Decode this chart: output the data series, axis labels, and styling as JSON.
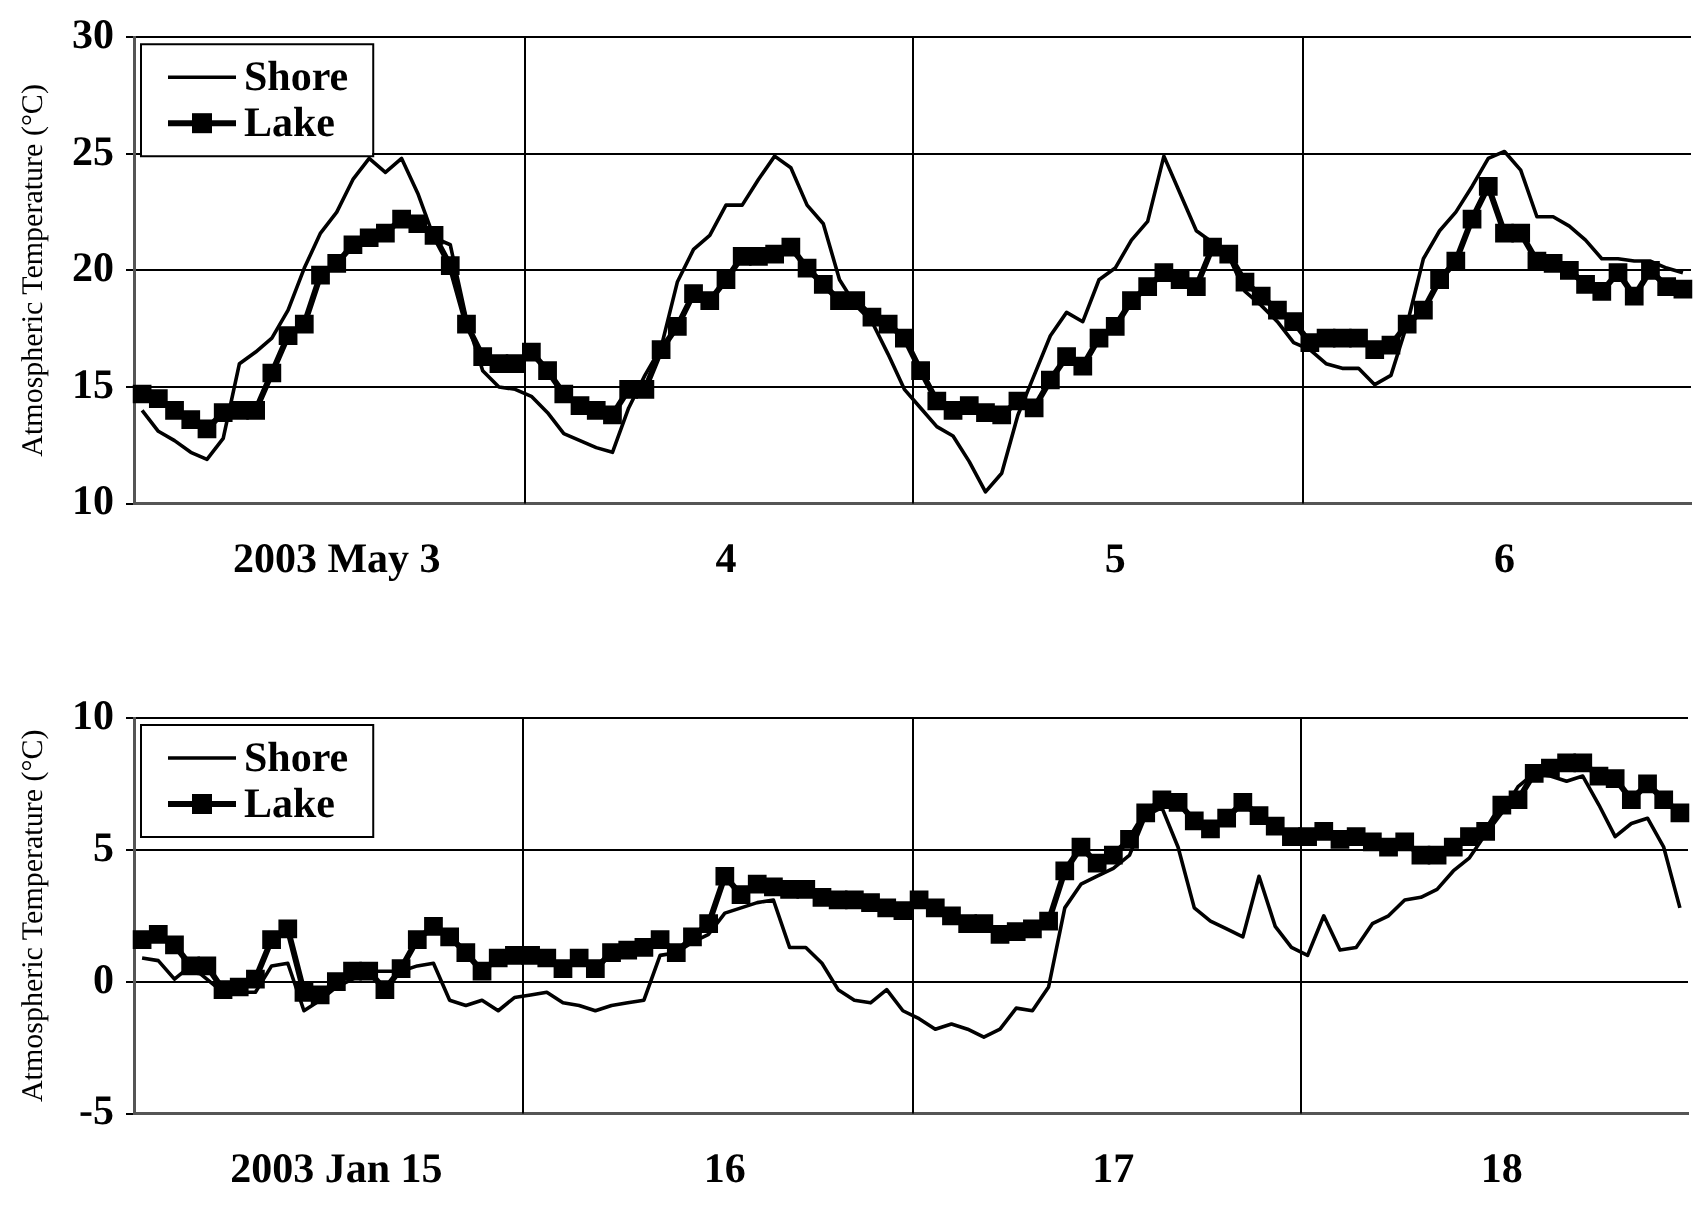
{
  "chart_data": [
    {
      "type": "line",
      "ylabel": "Atmospheric Temperature (°C)",
      "ylim": [
        10,
        30
      ],
      "yticks": [
        10,
        15,
        20,
        25,
        30
      ],
      "categories": [
        null,
        null,
        null,
        null,
        null,
        null,
        null,
        null,
        null,
        null,
        null,
        null,
        "2003 May 3",
        null,
        null,
        null,
        null,
        null,
        null,
        null,
        null,
        null,
        null,
        null,
        null,
        null,
        null,
        null,
        null,
        null,
        null,
        null,
        null,
        null,
        null,
        null,
        "4",
        null,
        null,
        null,
        null,
        null,
        null,
        null,
        null,
        null,
        null,
        null,
        null,
        null,
        null,
        null,
        null,
        null,
        null,
        null,
        null,
        null,
        null,
        null,
        "5",
        null,
        null,
        null,
        null,
        null,
        null,
        null,
        null,
        null,
        null,
        null,
        null,
        null,
        null,
        null,
        null,
        null,
        null,
        null,
        null,
        null,
        null,
        null,
        "6",
        null,
        null,
        null,
        null,
        null,
        null,
        null,
        null,
        null,
        null,
        null
      ],
      "grid": true,
      "legend": "top left",
      "series": [
        {
          "name": "Shore",
          "color": "#000000",
          "marker": "none",
          "values": [
            14.0,
            13.1,
            12.7,
            12.2,
            11.9,
            12.8,
            16.0,
            16.5,
            17.1,
            18.3,
            20.1,
            21.6,
            22.5,
            23.9,
            24.8,
            24.2,
            24.8,
            23.3,
            21.4,
            21.1,
            17.9,
            15.7,
            15.0,
            14.9,
            14.6,
            13.9,
            13.0,
            12.7,
            12.4,
            12.2,
            14.1,
            15.5,
            16.7,
            19.5,
            20.9,
            21.5,
            22.8,
            22.8,
            23.9,
            24.9,
            24.4,
            22.8,
            22.0,
            19.6,
            18.5,
            17.8,
            16.4,
            14.9,
            14.1,
            13.3,
            12.9,
            11.8,
            10.5,
            11.3,
            13.8,
            15.5,
            17.2,
            18.2,
            17.8,
            19.6,
            20.1,
            21.3,
            22.1,
            24.9,
            23.3,
            21.7,
            21.2,
            20.6,
            19.1,
            18.5,
            17.8,
            16.9,
            16.6,
            16.0,
            15.8,
            15.8,
            15.1,
            15.5,
            17.7,
            20.5,
            21.7,
            22.5,
            23.6,
            24.8,
            25.1,
            24.3,
            22.3,
            22.3,
            21.9,
            21.3,
            20.5,
            20.5,
            20.4,
            20.4,
            20.1,
            19.9
          ]
        },
        {
          "name": "Lake",
          "color": "#000000",
          "marker": "square",
          "values": [
            14.7,
            14.5,
            14.0,
            13.6,
            13.2,
            13.9,
            14.0,
            14.0,
            15.6,
            17.2,
            17.7,
            19.8,
            20.3,
            21.1,
            21.4,
            21.6,
            22.2,
            22.0,
            21.5,
            20.2,
            17.7,
            16.3,
            16.0,
            16.0,
            16.5,
            15.7,
            14.7,
            14.2,
            14.0,
            13.8,
            14.9,
            14.9,
            16.6,
            17.6,
            19.0,
            18.7,
            19.6,
            20.6,
            20.6,
            20.7,
            21.0,
            20.1,
            19.4,
            18.7,
            18.7,
            18.0,
            17.7,
            17.1,
            15.7,
            14.4,
            14.0,
            14.2,
            13.9,
            13.8,
            14.4,
            14.1,
            15.3,
            16.3,
            15.9,
            17.1,
            17.6,
            18.7,
            19.3,
            19.9,
            19.6,
            19.3,
            21.0,
            20.7,
            19.5,
            18.9,
            18.3,
            17.8,
            16.9,
            17.1,
            17.1,
            17.1,
            16.6,
            16.8,
            17.7,
            18.3,
            19.6,
            20.4,
            22.2,
            23.6,
            21.6,
            21.6,
            20.4,
            20.3,
            20.0,
            19.4,
            19.1,
            19.9,
            18.9,
            20.0,
            19.3,
            19.2
          ]
        }
      ]
    },
    {
      "type": "line",
      "ylabel": "Atmospheric Temperature (°C)",
      "ylim": [
        -5,
        10
      ],
      "yticks": [
        -5,
        0,
        5,
        10
      ],
      "categories": [
        null,
        null,
        null,
        null,
        null,
        null,
        null,
        null,
        null,
        null,
        null,
        null,
        "2003 Jan 15",
        null,
        null,
        null,
        null,
        null,
        null,
        null,
        null,
        null,
        null,
        null,
        null,
        null,
        null,
        null,
        null,
        null,
        null,
        null,
        null,
        null,
        null,
        null,
        "16",
        null,
        null,
        null,
        null,
        null,
        null,
        null,
        null,
        null,
        null,
        null,
        null,
        null,
        null,
        null,
        null,
        null,
        null,
        null,
        null,
        null,
        null,
        null,
        "17",
        null,
        null,
        null,
        null,
        null,
        null,
        null,
        null,
        null,
        null,
        null,
        null,
        null,
        null,
        null,
        null,
        null,
        null,
        null,
        null,
        null,
        null,
        null,
        "18",
        null,
        null,
        null,
        null,
        null,
        null,
        null,
        null,
        null,
        null,
        null
      ],
      "grid": true,
      "legend": "top left",
      "series": [
        {
          "name": "Shore",
          "color": "#000000",
          "marker": "none",
          "values": [
            0.9,
            0.8,
            0.1,
            0.6,
            0.1,
            -0.4,
            -0.4,
            -0.4,
            0.6,
            0.7,
            -1.1,
            -0.7,
            -0.2,
            0.1,
            0.4,
            0.4,
            0.4,
            0.6,
            0.7,
            -0.7,
            -0.9,
            -0.7,
            -1.1,
            -0.6,
            -0.5,
            -0.4,
            -0.8,
            -0.9,
            -1.1,
            -0.9,
            -0.8,
            -0.7,
            1.0,
            1.1,
            1.5,
            1.8,
            2.6,
            2.8,
            3.0,
            3.1,
            1.3,
            1.3,
            0.7,
            -0.3,
            -0.7,
            -0.8,
            -0.3,
            -1.1,
            -1.4,
            -1.8,
            -1.6,
            -1.8,
            -2.1,
            -1.8,
            -1.0,
            -1.1,
            -0.2,
            2.8,
            3.7,
            4.0,
            4.3,
            4.8,
            6.3,
            6.6,
            5.1,
            2.8,
            2.3,
            2.0,
            1.7,
            4.0,
            2.1,
            1.3,
            1.0,
            2.5,
            1.2,
            1.3,
            2.2,
            2.5,
            3.1,
            3.2,
            3.5,
            4.2,
            4.7,
            5.6,
            6.4,
            7.4,
            7.9,
            7.8,
            7.6,
            7.8,
            6.7,
            5.5,
            6.0,
            6.2,
            5.1,
            2.8
          ]
        },
        {
          "name": "Lake",
          "color": "#000000",
          "marker": "square",
          "values": [
            1.6,
            1.8,
            1.4,
            0.6,
            0.6,
            -0.3,
            -0.2,
            0.1,
            1.6,
            2.0,
            -0.4,
            -0.5,
            0.0,
            0.4,
            0.4,
            -0.3,
            0.5,
            1.6,
            2.1,
            1.7,
            1.1,
            0.4,
            0.9,
            1.0,
            1.0,
            0.9,
            0.5,
            0.9,
            0.5,
            1.1,
            1.2,
            1.3,
            1.6,
            1.1,
            1.7,
            2.2,
            4.0,
            3.3,
            3.7,
            3.6,
            3.5,
            3.5,
            3.2,
            3.1,
            3.1,
            3.0,
            2.8,
            2.7,
            3.1,
            2.8,
            2.5,
            2.2,
            2.2,
            1.8,
            1.9,
            2.0,
            2.3,
            4.2,
            5.1,
            4.5,
            4.8,
            5.4,
            6.4,
            6.9,
            6.8,
            6.1,
            5.8,
            6.2,
            6.8,
            6.3,
            5.9,
            5.5,
            5.5,
            5.7,
            5.4,
            5.5,
            5.3,
            5.1,
            5.3,
            4.8,
            4.8,
            5.1,
            5.5,
            5.7,
            6.7,
            6.9,
            7.9,
            8.1,
            8.3,
            8.3,
            7.8,
            7.7,
            6.9,
            7.5,
            6.9,
            6.4
          ]
        }
      ]
    }
  ]
}
